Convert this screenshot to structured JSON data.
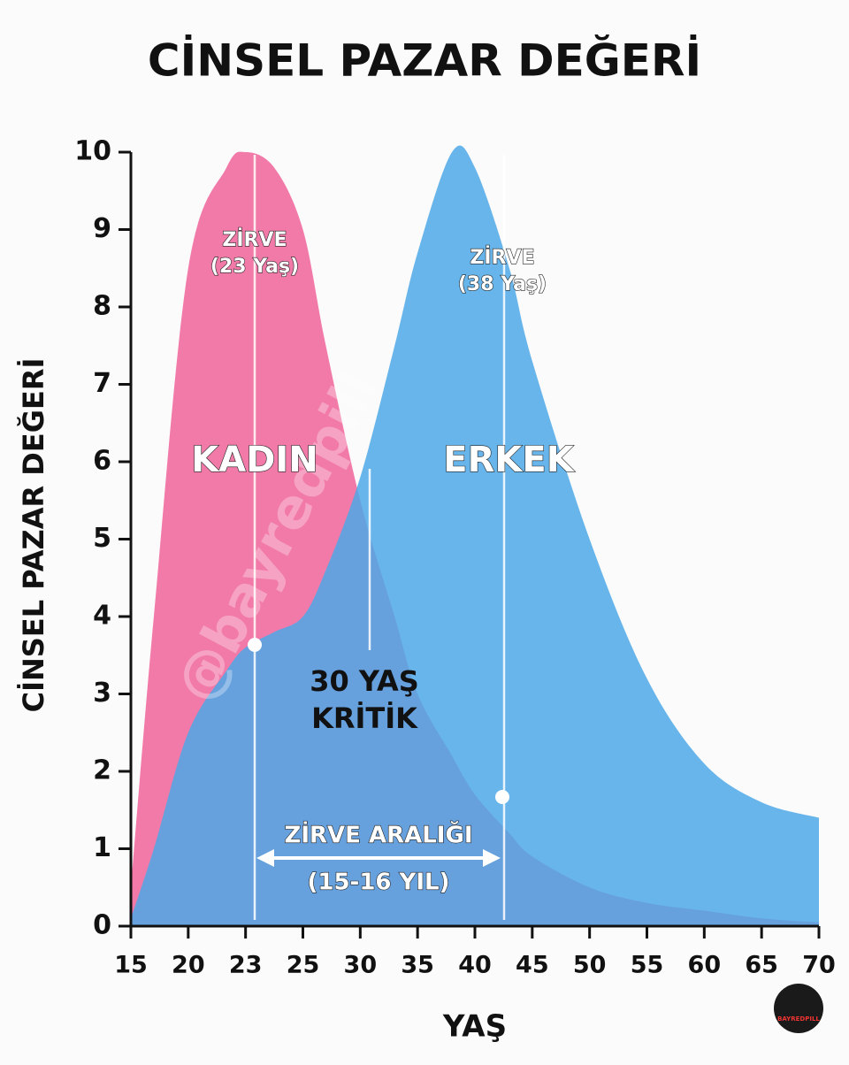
{
  "chart_data": {
    "type": "area",
    "title": "CİNSEL PAZAR DEĞERİ",
    "x_label": "YAŞ",
    "y_label": "CİNSEL PAZAR DEĞERİ",
    "x": [
      15,
      17,
      20,
      22,
      23,
      24,
      25,
      27,
      30,
      33,
      35,
      38,
      40,
      43,
      45,
      50,
      55,
      60,
      65,
      70
    ],
    "series": [
      {
        "name": "KADIN",
        "color": "#f27aa8",
        "values": [
          0.5,
          4,
          8.5,
          9.8,
          10,
          9.8,
          9,
          7.5,
          5.5,
          4,
          3,
          2.2,
          1.7,
          1.2,
          0.9,
          0.5,
          0.3,
          0.2,
          0.1,
          0.05
        ]
      },
      {
        "name": "ERKEK",
        "color": "#4ea8e8",
        "values": [
          0.1,
          1,
          2.5,
          3.3,
          3.6,
          3.8,
          4,
          4.6,
          5.8,
          7.5,
          8.7,
          10,
          9.8,
          8.5,
          7.3,
          5,
          3.2,
          2.1,
          1.6,
          1.4
        ]
      }
    ],
    "xlim": [
      15,
      70
    ],
    "xticks": [
      15,
      20,
      23,
      25,
      30,
      35,
      40,
      45,
      50,
      55,
      60,
      65,
      70
    ],
    "ylim": [
      0,
      10
    ],
    "yticks": [
      0,
      1,
      2,
      3,
      4,
      5,
      6,
      7,
      8,
      9,
      10
    ],
    "annotations": [
      "ZİRVE",
      "(23 Yaş)",
      "ZİRVE",
      "(38 Yaş)",
      "30 YAŞ",
      "KRİTİK",
      "ZİRVE ARALIĞI",
      "(15-16 YIL)"
    ],
    "watermark": "@bayredpill",
    "logo": "BAYREDPILL"
  }
}
